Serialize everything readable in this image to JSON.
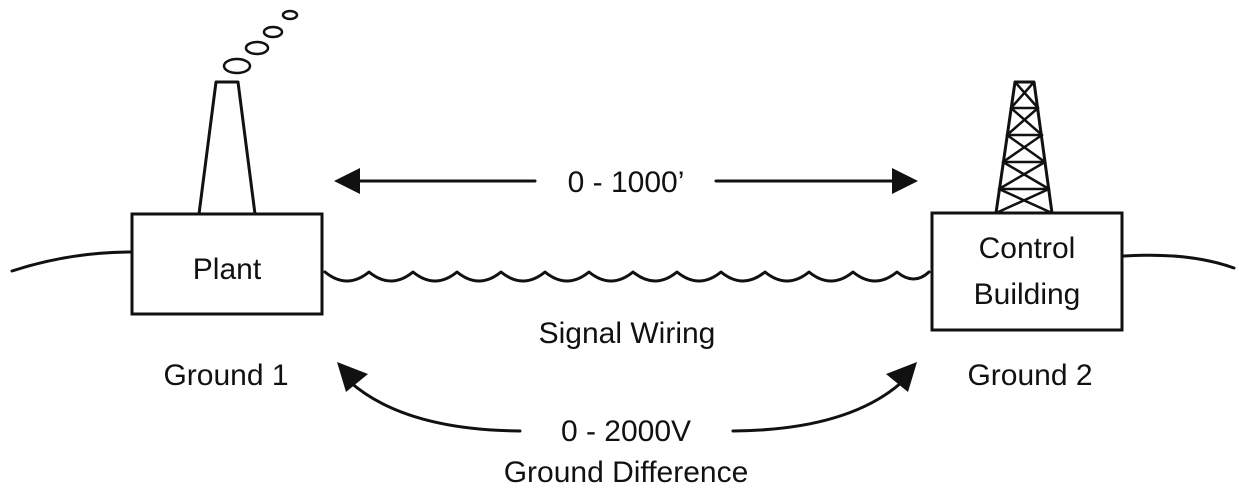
{
  "labels": {
    "plant": "Plant",
    "control_building_line1": "Control",
    "control_building_line2": "Building",
    "ground_1": "Ground 1",
    "ground_2": "Ground 2",
    "distance": "0 - 1000’",
    "signal_wiring": "Signal Wiring",
    "voltage": "0 - 2000V",
    "ground_difference": "Ground Difference"
  },
  "icons": {
    "plant_stack": "smokestack-icon",
    "smoke": "smoke-rings-icon",
    "tower": "lattice-tower-icon"
  }
}
